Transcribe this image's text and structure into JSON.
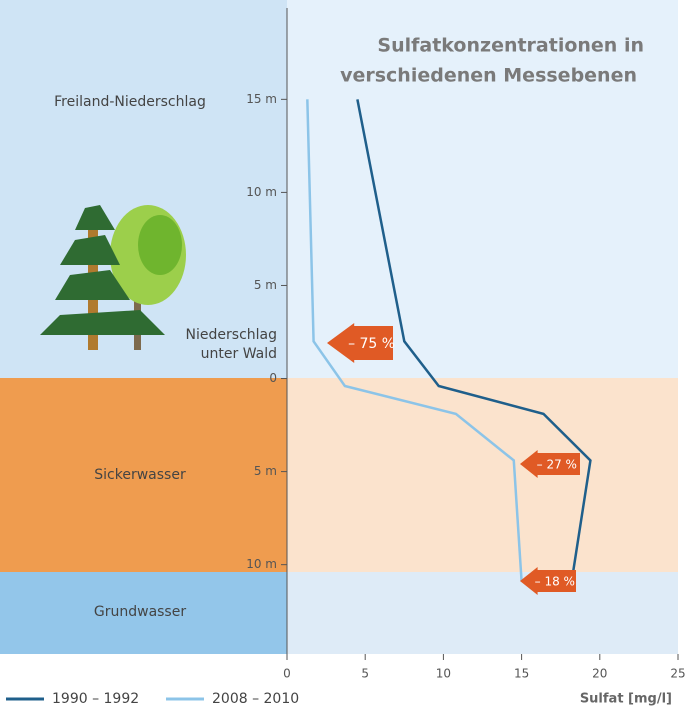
{
  "chart_data": {
    "type": "line",
    "title_lines": [
      "Sulfatkonzentrationen in",
      "verschiedenen Messebenen"
    ],
    "x_label": "Sulfat [mg/l]",
    "zones": [
      "Freiland-Niederschlag",
      "Niederschlag unter Wald",
      "Sickerwasser",
      "Grundwasser"
    ],
    "annotations": [
      "– 75 %",
      "– 27 %",
      "– 18 %"
    ],
    "xlim": [
      0,
      25
    ],
    "xticks": [
      0,
      5,
      10,
      15,
      20,
      25
    ],
    "ylim": [
      -14.8,
      19.8
    ],
    "yticks": [
      {
        "value": 15,
        "label": "15 m"
      },
      {
        "value": 10,
        "label": "10 m"
      },
      {
        "value": 5,
        "label": "5 m"
      },
      0,
      {
        "value": -5,
        "label": "5 m"
      },
      {
        "value": -10,
        "label": "10 m"
      }
    ],
    "series": [
      {
        "name": "1990 – 1992",
        "color": "#1f5f8b",
        "x": [
          4.5,
          7.5,
          9.7,
          16.4,
          19.4,
          18.2
        ],
        "values": [
          15,
          2.0,
          -0.4,
          -1.9,
          -4.4,
          -10.9
        ]
      },
      {
        "name": "2008 – 2010",
        "color": "#8cc4e8",
        "x": [
          1.3,
          1.7,
          3.7,
          10.8,
          14.5,
          15.0
        ],
        "values": [
          15,
          2.0,
          -0.4,
          -1.9,
          -4.4,
          -10.9
        ]
      }
    ]
  }
}
